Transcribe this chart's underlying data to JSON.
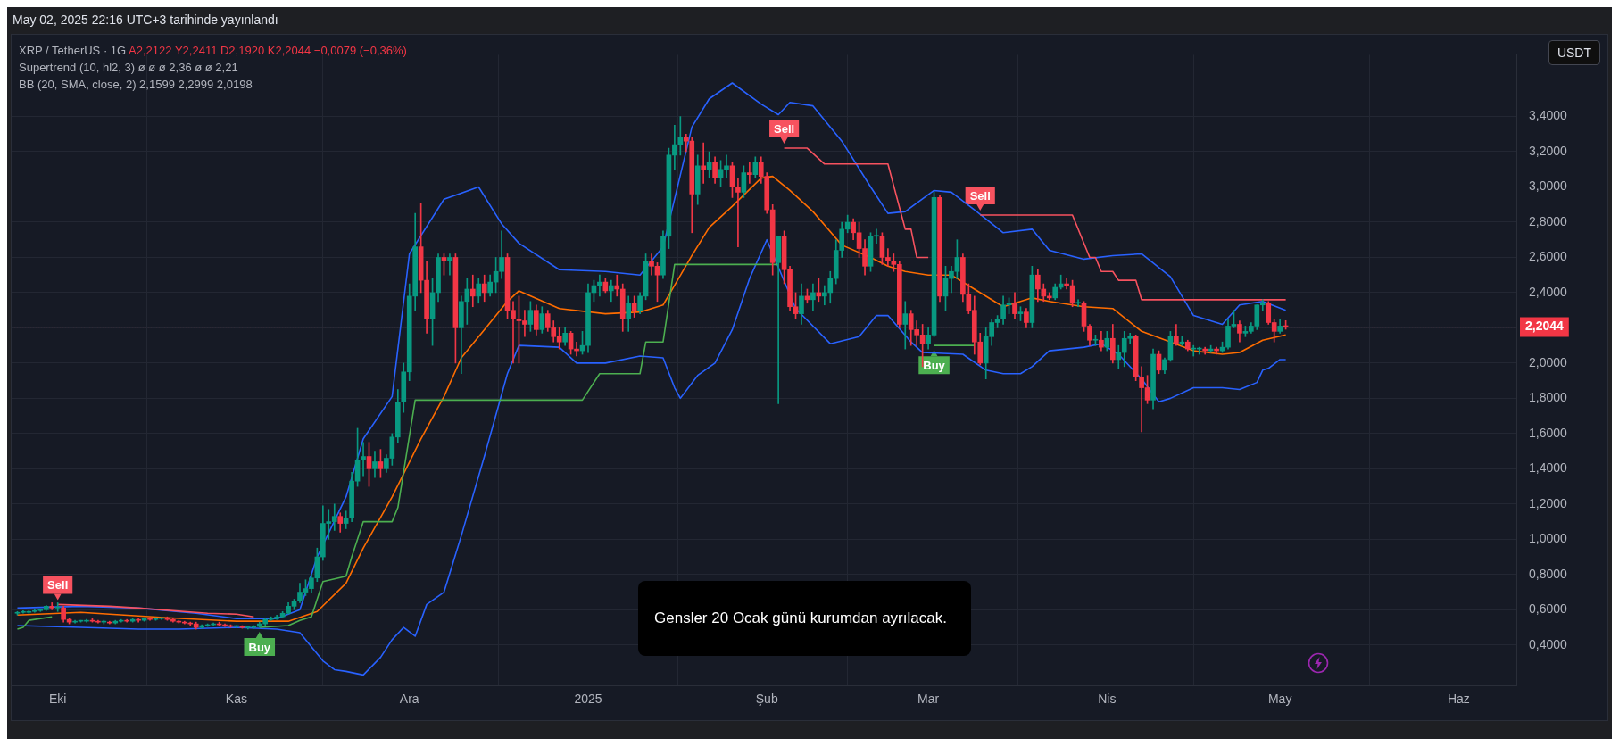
{
  "chart_data": {
    "type": "candlestick",
    "title": "XRP / TetherUS · 1G",
    "ylabel": "USDT",
    "x": [
      "2024-09-24",
      "2024-09-25",
      "2024-09-26",
      "2024-09-27",
      "2024-09-28",
      "2024-09-29",
      "2024-09-30",
      "2024-10-01",
      "2024-10-02",
      "2024-10-03",
      "2024-10-04",
      "2024-10-05",
      "2024-10-06",
      "2024-10-07",
      "2024-10-08",
      "2024-10-09",
      "2024-10-10",
      "2024-10-11",
      "2024-10-12",
      "2024-10-13",
      "2024-10-14",
      "2024-10-15",
      "2024-10-16",
      "2024-10-17",
      "2024-10-18",
      "2024-10-19",
      "2024-10-20",
      "2024-10-21",
      "2024-10-22",
      "2024-10-23",
      "2024-10-24",
      "2024-10-25",
      "2024-10-26",
      "2024-10-27",
      "2024-10-28",
      "2024-10-29",
      "2024-10-30",
      "2024-10-31",
      "2024-11-01",
      "2024-11-02",
      "2024-11-03",
      "2024-11-04",
      "2024-11-05",
      "2024-11-06",
      "2024-11-07",
      "2024-11-08",
      "2024-11-09",
      "2024-11-10",
      "2024-11-11",
      "2024-11-12",
      "2024-11-13",
      "2024-11-14",
      "2024-11-15",
      "2024-11-16",
      "2024-11-17",
      "2024-11-18",
      "2024-11-19",
      "2024-11-20",
      "2024-11-21",
      "2024-11-22",
      "2024-11-23",
      "2024-11-24",
      "2024-11-25",
      "2024-11-26",
      "2024-11-27",
      "2024-11-28",
      "2024-11-29",
      "2024-11-30",
      "2024-12-01",
      "2024-12-02",
      "2024-12-03",
      "2024-12-04",
      "2024-12-05",
      "2024-12-06",
      "2024-12-07",
      "2024-12-08",
      "2024-12-09",
      "2024-12-10",
      "2024-12-11",
      "2024-12-12",
      "2024-12-13",
      "2024-12-14",
      "2024-12-15",
      "2024-12-16",
      "2024-12-17",
      "2024-12-18",
      "2024-12-19",
      "2024-12-20",
      "2024-12-21",
      "2024-12-22",
      "2024-12-23",
      "2024-12-24",
      "2024-12-25",
      "2024-12-26",
      "2024-12-27",
      "2024-12-28",
      "2024-12-29",
      "2024-12-30",
      "2024-12-31",
      "2025-01-01",
      "2025-01-02",
      "2025-01-03",
      "2025-01-04",
      "2025-01-05",
      "2025-01-06",
      "2025-01-07",
      "2025-01-08",
      "2025-01-09",
      "2025-01-10",
      "2025-01-11",
      "2025-01-12",
      "2025-01-13",
      "2025-01-14",
      "2025-01-15",
      "2025-01-16",
      "2025-01-17",
      "2025-01-18",
      "2025-01-19",
      "2025-01-20",
      "2025-01-21",
      "2025-01-22",
      "2025-01-23",
      "2025-01-24",
      "2025-01-25",
      "2025-01-26",
      "2025-01-27",
      "2025-01-28",
      "2025-01-29",
      "2025-01-30",
      "2025-01-31",
      "2025-02-01",
      "2025-02-02",
      "2025-02-03",
      "2025-02-04",
      "2025-02-05",
      "2025-02-06",
      "2025-02-07",
      "2025-02-08",
      "2025-02-09",
      "2025-02-10",
      "2025-02-11",
      "2025-02-12",
      "2025-02-13",
      "2025-02-14",
      "2025-02-15",
      "2025-02-16",
      "2025-02-17",
      "2025-02-18",
      "2025-02-19",
      "2025-02-20",
      "2025-02-21",
      "2025-02-22",
      "2025-02-23",
      "2025-02-24",
      "2025-02-25",
      "2025-02-26",
      "2025-02-27",
      "2025-02-28",
      "2025-03-01",
      "2025-03-02",
      "2025-03-03",
      "2025-03-04",
      "2025-03-05",
      "2025-03-06",
      "2025-03-07",
      "2025-03-08",
      "2025-03-09",
      "2025-03-10",
      "2025-03-11",
      "2025-03-12",
      "2025-03-13",
      "2025-03-14",
      "2025-03-15",
      "2025-03-16",
      "2025-03-17",
      "2025-03-18",
      "2025-03-19",
      "2025-03-20",
      "2025-03-21",
      "2025-03-22",
      "2025-03-23",
      "2025-03-24",
      "2025-03-25",
      "2025-03-26",
      "2025-03-27",
      "2025-03-28",
      "2025-03-29",
      "2025-03-30",
      "2025-03-31",
      "2025-04-01",
      "2025-04-02",
      "2025-04-03",
      "2025-04-04",
      "2025-04-05",
      "2025-04-06",
      "2025-04-07",
      "2025-04-08",
      "2025-04-09",
      "2025-04-10",
      "2025-04-11",
      "2025-04-12",
      "2025-04-13",
      "2025-04-14",
      "2025-04-15",
      "2025-04-16",
      "2025-04-17",
      "2025-04-18",
      "2025-04-19",
      "2025-04-20",
      "2025-04-21",
      "2025-04-22",
      "2025-04-23",
      "2025-04-24",
      "2025-04-25",
      "2025-04-26",
      "2025-04-27",
      "2025-04-28",
      "2025-04-29",
      "2025-04-30",
      "2025-05-01",
      "2025-05-02"
    ],
    "ohlc": [
      [
        0.58,
        0.59,
        0.57,
        0.585
      ],
      [
        0.585,
        0.595,
        0.58,
        0.585
      ],
      [
        0.585,
        0.595,
        0.58,
        0.59
      ],
      [
        0.59,
        0.6,
        0.585,
        0.595
      ],
      [
        0.595,
        0.6,
        0.59,
        0.6
      ],
      [
        0.6,
        0.625,
        0.595,
        0.62
      ],
      [
        0.62,
        0.64,
        0.6,
        0.61
      ],
      [
        0.61,
        0.64,
        0.59,
        0.61
      ],
      [
        0.61,
        0.62,
        0.53,
        0.545
      ],
      [
        0.545,
        0.55,
        0.52,
        0.53
      ],
      [
        0.53,
        0.54,
        0.525,
        0.535
      ],
      [
        0.535,
        0.54,
        0.53,
        0.535
      ],
      [
        0.535,
        0.545,
        0.53,
        0.54
      ],
      [
        0.54,
        0.55,
        0.53,
        0.535
      ],
      [
        0.535,
        0.54,
        0.525,
        0.53
      ],
      [
        0.53,
        0.54,
        0.52,
        0.53
      ],
      [
        0.53,
        0.535,
        0.52,
        0.525
      ],
      [
        0.525,
        0.54,
        0.52,
        0.535
      ],
      [
        0.535,
        0.545,
        0.53,
        0.54
      ],
      [
        0.54,
        0.545,
        0.53,
        0.535
      ],
      [
        0.535,
        0.55,
        0.53,
        0.545
      ],
      [
        0.545,
        0.55,
        0.53,
        0.54
      ],
      [
        0.54,
        0.555,
        0.535,
        0.55
      ],
      [
        0.55,
        0.555,
        0.54,
        0.545
      ],
      [
        0.545,
        0.555,
        0.54,
        0.55
      ],
      [
        0.55,
        0.555,
        0.545,
        0.55
      ],
      [
        0.55,
        0.56,
        0.54,
        0.545
      ],
      [
        0.545,
        0.55,
        0.53,
        0.535
      ],
      [
        0.535,
        0.54,
        0.525,
        0.53
      ],
      [
        0.53,
        0.535,
        0.52,
        0.525
      ],
      [
        0.525,
        0.53,
        0.51,
        0.52
      ],
      [
        0.52,
        0.53,
        0.49,
        0.5
      ],
      [
        0.5,
        0.515,
        0.495,
        0.51
      ],
      [
        0.51,
        0.52,
        0.505,
        0.515
      ],
      [
        0.515,
        0.525,
        0.51,
        0.52
      ],
      [
        0.52,
        0.53,
        0.51,
        0.515
      ],
      [
        0.515,
        0.52,
        0.505,
        0.51
      ],
      [
        0.51,
        0.515,
        0.5,
        0.505
      ],
      [
        0.505,
        0.51,
        0.5,
        0.505
      ],
      [
        0.505,
        0.51,
        0.495,
        0.5
      ],
      [
        0.5,
        0.505,
        0.49,
        0.5
      ],
      [
        0.5,
        0.51,
        0.495,
        0.505
      ],
      [
        0.505,
        0.53,
        0.5,
        0.52
      ],
      [
        0.52,
        0.55,
        0.51,
        0.545
      ],
      [
        0.545,
        0.56,
        0.54,
        0.55
      ],
      [
        0.55,
        0.57,
        0.545,
        0.56
      ],
      [
        0.56,
        0.59,
        0.555,
        0.58
      ],
      [
        0.58,
        0.64,
        0.575,
        0.62
      ],
      [
        0.62,
        0.66,
        0.6,
        0.65
      ],
      [
        0.65,
        0.75,
        0.64,
        0.7
      ],
      [
        0.7,
        0.77,
        0.68,
        0.72
      ],
      [
        0.72,
        0.8,
        0.7,
        0.78
      ],
      [
        0.78,
        0.95,
        0.76,
        0.9
      ],
      [
        0.9,
        1.19,
        0.88,
        1.09
      ],
      [
        1.09,
        1.17,
        1.0,
        1.1
      ],
      [
        1.1,
        1.2,
        1.05,
        1.13
      ],
      [
        1.13,
        1.15,
        1.04,
        1.09
      ],
      [
        1.09,
        1.16,
        1.06,
        1.12
      ],
      [
        1.12,
        1.38,
        1.1,
        1.33
      ],
      [
        1.33,
        1.63,
        1.3,
        1.45
      ],
      [
        1.45,
        1.55,
        1.36,
        1.47
      ],
      [
        1.47,
        1.55,
        1.3,
        1.4
      ],
      [
        1.4,
        1.5,
        1.35,
        1.44
      ],
      [
        1.44,
        1.51,
        1.35,
        1.4
      ],
      [
        1.4,
        1.48,
        1.38,
        1.46
      ],
      [
        1.46,
        1.6,
        1.42,
        1.58
      ],
      [
        1.58,
        1.85,
        1.55,
        1.78
      ],
      [
        1.78,
        2.0,
        1.72,
        1.95
      ],
      [
        1.95,
        2.45,
        1.9,
        2.38
      ],
      [
        2.38,
        2.85,
        2.3,
        2.66
      ],
      [
        2.66,
        2.91,
        2.4,
        2.47
      ],
      [
        2.47,
        2.58,
        2.17,
        2.25
      ],
      [
        2.25,
        2.48,
        2.1,
        2.4
      ],
      [
        2.4,
        2.62,
        2.35,
        2.6
      ],
      [
        2.6,
        2.62,
        2.5,
        2.58
      ],
      [
        2.58,
        2.62,
        2.5,
        2.6
      ],
      [
        2.6,
        2.62,
        2.0,
        2.2
      ],
      [
        2.2,
        2.38,
        1.94,
        2.35
      ],
      [
        2.35,
        2.48,
        2.22,
        2.42
      ],
      [
        2.42,
        2.5,
        2.32,
        2.38
      ],
      [
        2.38,
        2.48,
        2.34,
        2.45
      ],
      [
        2.45,
        2.5,
        2.35,
        2.4
      ],
      [
        2.4,
        2.5,
        2.38,
        2.46
      ],
      [
        2.46,
        2.6,
        2.4,
        2.52
      ],
      [
        2.52,
        2.75,
        2.48,
        2.6
      ],
      [
        2.6,
        2.62,
        2.25,
        2.3
      ],
      [
        2.3,
        2.35,
        2.0,
        2.25
      ],
      [
        2.25,
        2.38,
        2.0,
        2.24
      ],
      [
        2.24,
        2.3,
        2.15,
        2.22
      ],
      [
        2.22,
        2.35,
        2.18,
        2.3
      ],
      [
        2.3,
        2.33,
        2.16,
        2.19
      ],
      [
        2.19,
        2.32,
        2.17,
        2.28
      ],
      [
        2.28,
        2.3,
        2.18,
        2.2
      ],
      [
        2.2,
        2.24,
        2.12,
        2.15
      ],
      [
        2.15,
        2.2,
        2.08,
        2.12
      ],
      [
        2.12,
        2.2,
        2.1,
        2.17
      ],
      [
        2.17,
        2.18,
        2.05,
        2.08
      ],
      [
        2.08,
        2.12,
        2.04,
        2.07
      ],
      [
        2.07,
        2.18,
        2.05,
        2.1
      ],
      [
        2.1,
        2.45,
        2.06,
        2.4
      ],
      [
        2.4,
        2.47,
        2.35,
        2.44
      ],
      [
        2.44,
        2.5,
        2.38,
        2.46
      ],
      [
        2.46,
        2.48,
        2.4,
        2.41
      ],
      [
        2.41,
        2.47,
        2.35,
        2.44
      ],
      [
        2.44,
        2.5,
        2.38,
        2.42
      ],
      [
        2.42,
        2.45,
        2.18,
        2.25
      ],
      [
        2.25,
        2.38,
        2.18,
        2.34
      ],
      [
        2.34,
        2.38,
        2.26,
        2.3
      ],
      [
        2.3,
        2.4,
        2.28,
        2.38
      ],
      [
        2.38,
        2.62,
        2.36,
        2.58
      ],
      [
        2.58,
        2.62,
        2.5,
        2.55
      ],
      [
        2.55,
        2.57,
        2.35,
        2.5
      ],
      [
        2.5,
        2.75,
        2.48,
        2.72
      ],
      [
        2.72,
        3.22,
        2.65,
        3.18
      ],
      [
        3.18,
        3.35,
        3.1,
        3.24
      ],
      [
        3.24,
        3.4,
        3.18,
        3.28
      ],
      [
        3.28,
        3.3,
        3.2,
        3.26
      ],
      [
        3.26,
        3.28,
        2.74,
        2.96
      ],
      [
        2.96,
        3.18,
        2.9,
        3.12
      ],
      [
        3.12,
        3.25,
        3.02,
        3.1
      ],
      [
        3.1,
        3.2,
        3.05,
        3.14
      ],
      [
        3.14,
        3.17,
        3.02,
        3.05
      ],
      [
        3.05,
        3.15,
        3.0,
        3.1
      ],
      [
        3.1,
        3.18,
        3.05,
        3.12
      ],
      [
        3.12,
        3.14,
        2.94,
        3.0
      ],
      [
        3.0,
        3.05,
        2.66,
        2.97
      ],
      [
        2.97,
        3.12,
        2.94,
        3.08
      ],
      [
        3.08,
        3.14,
        3.02,
        3.07
      ],
      [
        3.07,
        3.17,
        3.05,
        3.14
      ],
      [
        3.14,
        3.17,
        3.02,
        3.06
      ],
      [
        3.06,
        3.08,
        2.85,
        2.87
      ],
      [
        2.87,
        2.9,
        2.5,
        2.57
      ],
      [
        2.57,
        2.72,
        1.77,
        2.72
      ],
      [
        2.72,
        2.75,
        2.45,
        2.53
      ],
      [
        2.53,
        2.55,
        2.3,
        2.32
      ],
      [
        2.32,
        2.4,
        2.25,
        2.28
      ],
      [
        2.28,
        2.45,
        2.22,
        2.38
      ],
      [
        2.38,
        2.42,
        2.34,
        2.36
      ],
      [
        2.36,
        2.45,
        2.3,
        2.4
      ],
      [
        2.4,
        2.48,
        2.35,
        2.38
      ],
      [
        2.38,
        2.44,
        2.33,
        2.4
      ],
      [
        2.4,
        2.52,
        2.34,
        2.48
      ],
      [
        2.48,
        2.7,
        2.45,
        2.64
      ],
      [
        2.64,
        2.8,
        2.6,
        2.76
      ],
      [
        2.76,
        2.84,
        2.74,
        2.8
      ],
      [
        2.8,
        2.82,
        2.7,
        2.74
      ],
      [
        2.74,
        2.8,
        2.6,
        2.65
      ],
      [
        2.65,
        2.7,
        2.5,
        2.55
      ],
      [
        2.55,
        2.74,
        2.52,
        2.72
      ],
      [
        2.72,
        2.76,
        2.68,
        2.72
      ],
      [
        2.72,
        2.74,
        2.56,
        2.6
      ],
      [
        2.6,
        2.65,
        2.55,
        2.58
      ],
      [
        2.58,
        2.62,
        2.52,
        2.56
      ],
      [
        2.56,
        2.58,
        2.2,
        2.22
      ],
      [
        2.22,
        2.35,
        2.08,
        2.28
      ],
      [
        2.28,
        2.3,
        2.1,
        2.19
      ],
      [
        2.19,
        2.24,
        2.1,
        2.16
      ],
      [
        2.16,
        2.22,
        1.98,
        2.11
      ],
      [
        2.11,
        2.2,
        2.08,
        2.16
      ],
      [
        2.16,
        2.97,
        2.15,
        2.94
      ],
      [
        2.94,
        2.95,
        2.35,
        2.38
      ],
      [
        2.38,
        2.55,
        2.3,
        2.48
      ],
      [
        2.48,
        2.55,
        2.4,
        2.52
      ],
      [
        2.52,
        2.7,
        2.48,
        2.6
      ],
      [
        2.6,
        2.62,
        2.35,
        2.39
      ],
      [
        2.39,
        2.45,
        2.28,
        2.3
      ],
      [
        2.3,
        2.38,
        2.05,
        2.12
      ],
      [
        2.12,
        2.17,
        1.99,
        2.0
      ],
      [
        2.0,
        2.2,
        1.91,
        2.15
      ],
      [
        2.15,
        2.25,
        2.1,
        2.23
      ],
      [
        2.23,
        2.27,
        2.2,
        2.25
      ],
      [
        2.25,
        2.38,
        2.22,
        2.33
      ],
      [
        2.33,
        2.37,
        2.28,
        2.34
      ],
      [
        2.34,
        2.4,
        2.25,
        2.28
      ],
      [
        2.28,
        2.32,
        2.24,
        2.29
      ],
      [
        2.29,
        2.31,
        2.2,
        2.23
      ],
      [
        2.23,
        2.55,
        2.2,
        2.5
      ],
      [
        2.5,
        2.53,
        2.35,
        2.42
      ],
      [
        2.42,
        2.45,
        2.35,
        2.38
      ],
      [
        2.38,
        2.4,
        2.36,
        2.37
      ],
      [
        2.37,
        2.45,
        2.36,
        2.43
      ],
      [
        2.43,
        2.5,
        2.42,
        2.45
      ],
      [
        2.45,
        2.48,
        2.42,
        2.44
      ],
      [
        2.44,
        2.47,
        2.32,
        2.34
      ],
      [
        2.34,
        2.36,
        2.32,
        2.34
      ],
      [
        2.34,
        2.35,
        2.18,
        2.21
      ],
      [
        2.21,
        2.22,
        2.1,
        2.13
      ],
      [
        2.13,
        2.16,
        2.1,
        2.13
      ],
      [
        2.13,
        2.18,
        2.07,
        2.09
      ],
      [
        2.09,
        2.18,
        2.07,
        2.14
      ],
      [
        2.14,
        2.22,
        2.0,
        2.02
      ],
      [
        2.02,
        2.1,
        1.97,
        2.06
      ],
      [
        2.06,
        2.18,
        1.98,
        2.14
      ],
      [
        2.14,
        2.17,
        2.11,
        2.15
      ],
      [
        2.15,
        2.16,
        1.9,
        1.92
      ],
      [
        1.92,
        1.98,
        1.61,
        1.86
      ],
      [
        1.86,
        1.93,
        1.77,
        1.79
      ],
      [
        1.79,
        2.08,
        1.74,
        2.05
      ],
      [
        2.05,
        2.07,
        1.94,
        1.96
      ],
      [
        1.96,
        2.03,
        1.94,
        2.02
      ],
      [
        2.02,
        2.18,
        2.01,
        2.15
      ],
      [
        2.15,
        2.22,
        2.1,
        2.11
      ],
      [
        2.11,
        2.15,
        2.1,
        2.12
      ],
      [
        2.12,
        2.13,
        2.07,
        2.08
      ],
      [
        2.08,
        2.1,
        2.04,
        2.08
      ],
      [
        2.08,
        2.09,
        2.05,
        2.08
      ],
      [
        2.08,
        2.09,
        2.05,
        2.07
      ],
      [
        2.07,
        2.1,
        2.06,
        2.08
      ],
      [
        2.08,
        2.09,
        2.05,
        2.07
      ],
      [
        2.07,
        2.12,
        2.06,
        2.09
      ],
      [
        2.09,
        2.25,
        2.08,
        2.21
      ],
      [
        2.21,
        2.3,
        2.2,
        2.22
      ],
      [
        2.22,
        2.24,
        2.12,
        2.17
      ],
      [
        2.17,
        2.21,
        2.15,
        2.18
      ],
      [
        2.18,
        2.23,
        2.17,
        2.21
      ],
      [
        2.21,
        2.33,
        2.19,
        2.33
      ],
      [
        2.33,
        2.36,
        2.3,
        2.34
      ],
      [
        2.34,
        2.35,
        2.22,
        2.23
      ],
      [
        2.23,
        2.25,
        2.12,
        2.18
      ],
      [
        2.18,
        2.25,
        2.17,
        2.21
      ],
      [
        2.2122,
        2.2411,
        2.192,
        2.2044
      ]
    ],
    "series": [
      {
        "type": "line",
        "color": "#4caf50",
        "x": [
          "2024-09-24",
          "2024-09-25",
          "2024-09-26",
          "2024-09-30",
          "2024-10-01",
          "2024-11-05",
          "2024-11-10",
          "2024-11-12",
          "2024-11-14",
          "2024-11-16",
          "2024-11-20",
          "2024-11-21",
          "2024-11-23",
          "2024-11-28",
          "2024-11-29",
          "2024-12-02",
          "2024-12-31",
          "2025-01-03",
          "2025-01-10",
          "2025-01-11",
          "2025-01-14",
          "2025-01-16",
          "2025-02-03",
          "2025-02-04",
          "2025-03-02",
          "2025-03-09"
        ],
        "values": [
          0.49,
          0.5,
          0.54,
          0.56,
          null,
          0.5,
          0.51,
          0.54,
          0.56,
          0.76,
          0.79,
          0.9,
          1.1,
          1.1,
          1.18,
          1.79,
          1.79,
          1.94,
          1.94,
          2.12,
          2.12,
          2.56,
          2.56,
          null,
          2.1,
          2.1
        ]
      },
      {
        "type": "line",
        "color": "#f7525f",
        "x": [
          "2024-10-01",
          "2024-10-10",
          "2024-10-15",
          "2024-10-27",
          "2024-11-01",
          "2024-11-04",
          "2024-11-05",
          "2025-02-04",
          "2025-02-08",
          "2025-02-10",
          "2025-02-11",
          "2025-02-22",
          "2025-02-25",
          "2025-02-26",
          "2025-02-27",
          "2025-03-01",
          "2025-03-02",
          "2025-03-10",
          "2025-03-26",
          "2025-03-29",
          "2025-03-30",
          "2025-03-31",
          "2025-04-02",
          "2025-04-03",
          "2025-04-06",
          "2025-04-07",
          "2025-05-02"
        ],
        "values": [
          0.63,
          0.62,
          0.61,
          0.58,
          0.575,
          0.56,
          null,
          3.22,
          3.22,
          3.16,
          3.13,
          3.13,
          2.76,
          2.76,
          2.6,
          2.6,
          null,
          2.84,
          2.84,
          2.6,
          2.6,
          2.52,
          2.52,
          2.47,
          2.47,
          2.36,
          2.36
        ]
      },
      {
        "type": "line",
        "color": "#ff6d00",
        "x": [
          "2024-09-24",
          "2024-10-05",
          "2024-10-20",
          "2024-11-01",
          "2024-11-10",
          "2024-11-15",
          "2024-11-20",
          "2024-11-23",
          "2024-11-28",
          "2024-12-03",
          "2024-12-07",
          "2024-12-10",
          "2024-12-14",
          "2024-12-18",
          "2024-12-20",
          "2024-12-27",
          "2025-01-04",
          "2025-01-10",
          "2025-01-14",
          "2025-01-19",
          "2025-01-22",
          "2025-01-26",
          "2025-01-31",
          "2025-02-02",
          "2025-02-05",
          "2025-02-09",
          "2025-02-14",
          "2025-02-19",
          "2025-02-22",
          "2025-02-25",
          "2025-03-01",
          "2025-03-05",
          "2025-03-09",
          "2025-03-14",
          "2025-03-19",
          "2025-03-22",
          "2025-03-28",
          "2025-04-02",
          "2025-04-07",
          "2025-04-12",
          "2025-04-16",
          "2025-04-21",
          "2025-04-24",
          "2025-04-28",
          "2025-05-02"
        ],
        "values": [
          0.57,
          0.585,
          0.555,
          0.535,
          0.535,
          0.59,
          0.75,
          0.95,
          1.24,
          1.57,
          1.81,
          2.03,
          2.19,
          2.35,
          2.41,
          2.31,
          2.28,
          2.29,
          2.33,
          2.61,
          2.77,
          2.89,
          3.05,
          3.06,
          2.98,
          2.86,
          2.67,
          2.6,
          2.55,
          2.52,
          2.5,
          2.5,
          2.42,
          2.32,
          2.37,
          2.35,
          2.32,
          2.31,
          2.18,
          2.12,
          2.07,
          2.05,
          2.06,
          2.13,
          2.1599
        ]
      },
      {
        "type": "line",
        "color": "#2962ff",
        "x": [
          "2024-09-24",
          "2024-10-05",
          "2024-10-15",
          "2024-10-25",
          "2024-11-01",
          "2024-11-08",
          "2024-11-12",
          "2024-11-15",
          "2024-11-20",
          "2024-11-23",
          "2024-11-28",
          "2024-12-01",
          "2024-12-07",
          "2024-12-13",
          "2024-12-17",
          "2024-12-20",
          "2024-12-27",
          "2025-01-04",
          "2025-01-10",
          "2025-01-14",
          "2025-01-19",
          "2025-01-22",
          "2025-01-26",
          "2025-01-31",
          "2025-02-03",
          "2025-02-05",
          "2025-02-09",
          "2025-02-14",
          "2025-02-19",
          "2025-02-22",
          "2025-02-25",
          "2025-03-02",
          "2025-03-05",
          "2025-03-09",
          "2025-03-14",
          "2025-03-19",
          "2025-03-22",
          "2025-03-28",
          "2025-04-02",
          "2025-04-07",
          "2025-04-12",
          "2025-04-16",
          "2025-04-21",
          "2025-04-24",
          "2025-04-28",
          "2025-05-02"
        ],
        "values": [
          0.61,
          0.62,
          0.61,
          0.58,
          0.55,
          0.55,
          0.6,
          0.9,
          1.24,
          1.57,
          1.81,
          2.62,
          2.93,
          3.0,
          2.79,
          2.68,
          2.53,
          2.52,
          2.5,
          2.66,
          3.34,
          3.5,
          3.59,
          3.47,
          3.41,
          3.48,
          3.46,
          3.26,
          3.0,
          2.85,
          2.86,
          2.98,
          2.97,
          2.87,
          2.74,
          2.76,
          2.64,
          2.59,
          2.61,
          2.62,
          2.49,
          2.27,
          2.22,
          2.33,
          2.35,
          2.2999
        ]
      },
      {
        "type": "line",
        "color": "#2962ff",
        "x": [
          "2024-09-24",
          "2024-10-05",
          "2024-10-15",
          "2024-10-22",
          "2024-11-01",
          "2024-11-08",
          "2024-11-12",
          "2024-11-16",
          "2024-11-18",
          "2024-11-20",
          "2024-11-23",
          "2024-11-26",
          "2024-11-28",
          "2024-11-30",
          "2024-12-02",
          "2024-12-04",
          "2024-12-07",
          "2024-12-10",
          "2024-12-14",
          "2024-12-18",
          "2024-12-20",
          "2024-12-27",
          "2024-12-30",
          "2025-01-04",
          "2025-01-10",
          "2025-01-14",
          "2025-01-16",
          "2025-01-17",
          "2025-01-20",
          "2025-01-23",
          "2025-01-26",
          "2025-01-29",
          "2025-02-01",
          "2025-02-06",
          "2025-02-12",
          "2025-02-17",
          "2025-02-20",
          "2025-02-22",
          "2025-02-26",
          "2025-02-28",
          "2025-03-07",
          "2025-03-11",
          "2025-03-14",
          "2025-03-17",
          "2025-03-19",
          "2025-03-22",
          "2025-03-28",
          "2025-03-31",
          "2025-04-03",
          "2025-04-07",
          "2025-04-10",
          "2025-04-12",
          "2025-04-16",
          "2025-04-21",
          "2025-04-24",
          "2025-04-27",
          "2025-04-28",
          "2025-04-29",
          "2025-05-01",
          "2025-05-02"
        ],
        "values": [
          0.51,
          0.5,
          0.49,
          0.49,
          0.5,
          0.49,
          0.47,
          0.31,
          0.26,
          0.25,
          0.23,
          0.33,
          0.43,
          0.5,
          0.45,
          0.63,
          0.7,
          1.02,
          1.47,
          1.94,
          2.1,
          2.09,
          2.0,
          2.0,
          2.04,
          2.03,
          1.86,
          1.8,
          1.93,
          2.0,
          2.19,
          2.48,
          2.7,
          2.31,
          2.11,
          2.15,
          2.27,
          2.27,
          2.12,
          2.06,
          2.05,
          1.96,
          1.94,
          1.94,
          1.98,
          2.07,
          2.09,
          2.11,
          2.05,
          1.91,
          1.78,
          1.8,
          1.86,
          1.86,
          1.85,
          1.89,
          1.96,
          1.97,
          2.02,
          2.0198
        ]
      }
    ],
    "xlim": [
      "2024-09-23",
      "2025-06-11"
    ],
    "xticks": [
      {
        "value": "2024-10-01",
        "label": "Eki"
      },
      {
        "value": "2024-11-01",
        "label": "Kas"
      },
      {
        "value": "2024-12-01",
        "label": "Ara"
      },
      {
        "value": "2025-01-01",
        "label": "2025"
      },
      {
        "value": "2025-02-01",
        "label": "Şub"
      },
      {
        "value": "2025-03-01",
        "label": "Mar"
      },
      {
        "value": "2025-04-01",
        "label": "Nis"
      },
      {
        "value": "2025-05-01",
        "label": "May"
      },
      {
        "value": "2025-06-01",
        "label": "Haz"
      }
    ],
    "ylim": [
      0.17,
      3.75
    ],
    "yticks": [
      {
        "value": 0.4,
        "label": "0,4000"
      },
      {
        "value": 0.6,
        "label": "0,6000"
      },
      {
        "value": 0.8,
        "label": "0,8000"
      },
      {
        "value": 1.0,
        "label": "1,0000"
      },
      {
        "value": 1.2,
        "label": "1,2000"
      },
      {
        "value": 1.4,
        "label": "1,4000"
      },
      {
        "value": 1.6,
        "label": "1,6000"
      },
      {
        "value": 1.8,
        "label": "1,8000"
      },
      {
        "value": 2.0,
        "label": "2,0000"
      },
      {
        "value": 2.2,
        "label": null
      },
      {
        "value": 2.4,
        "label": "2,4000"
      },
      {
        "value": 2.6,
        "label": "2,6000"
      },
      {
        "value": 2.8,
        "label": "2,8000"
      },
      {
        "value": 3.0,
        "label": "3,0000"
      },
      {
        "value": 3.2,
        "label": "3,2000"
      },
      {
        "value": 3.4,
        "label": "3,4000"
      }
    ],
    "grid": true,
    "ref_lines": [
      {
        "axis": "y",
        "value": 2.2044,
        "label": "2,2044",
        "color": "#f23645",
        "line_style": "dotted"
      }
    ],
    "annotations": [
      "May 02, 2025 22:16 UTC+3 tarihinde yayınlandı",
      "A2,2122 Y2,2411 D2,1920 K2,2044 −0,0079 (−0,36%)",
      "Supertrend (10, hl2, 3) ø ø ø 2,36 ø ø 2,21",
      "BB (20, SMA, close, 2) 2,1599 2,2999 2,0198",
      "Gensler 20 Ocak günü kurumdan ayrılacak.",
      {
        "text": "Sell",
        "x": "2024-10-01",
        "y": 0.63
      },
      {
        "text": "Buy",
        "x": "2024-11-05",
        "y": 0.5
      },
      {
        "text": "Sell",
        "x": "2025-02-04",
        "y": 3.22
      },
      {
        "text": "Buy",
        "x": "2025-03-02",
        "y": 2.1
      },
      {
        "text": "Sell",
        "x": "2025-03-10",
        "y": 2.84
      }
    ]
  }
}
